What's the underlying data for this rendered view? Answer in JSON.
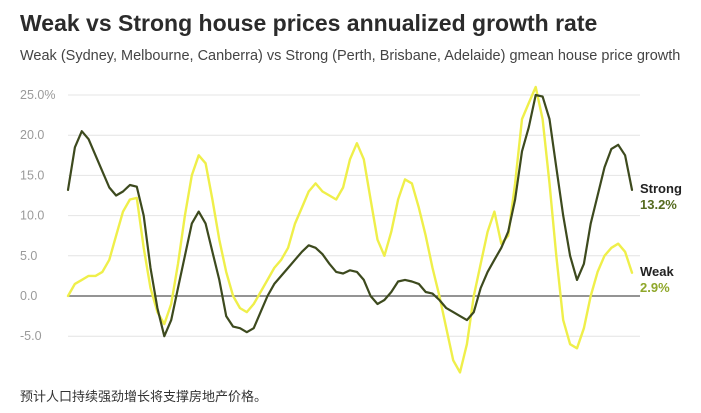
{
  "header": {
    "title": "Weak vs Strong house prices annualized growth rate",
    "subtitle": "Weak (Sydney, Melbourne, Canberra) vs Strong (Perth, Brisbane, Adelaide) gmean house price growth"
  },
  "caption": "预计人口持续强劲增长将支撑房地产价格。",
  "chart_data": {
    "type": "line",
    "title": "Weak vs Strong house prices annualized growth rate",
    "subtitle": "Weak (Sydney, Melbourne, Canberra) vs Strong (Perth, Brisbane, Adelaide) gmean house price growth",
    "ylim": [
      -8,
      26
    ],
    "yticks": [
      -5,
      0,
      5,
      10,
      15,
      20,
      25
    ],
    "ytick_labels": [
      "-5.0",
      "0.0",
      "5.0",
      "10.0",
      "15.0",
      "20.0",
      "25.0%"
    ],
    "grid": true,
    "legend": "end-labels-right",
    "series": [
      {
        "name": "Strong",
        "end_label": "13.2%",
        "color": "#3d4a1e",
        "values": [
          13.2,
          18.5,
          20.5,
          19.5,
          17.5,
          15.5,
          13.5,
          12.5,
          13.0,
          13.8,
          13.6,
          10.0,
          3.5,
          -1.5,
          -5.0,
          -3.0,
          1.0,
          5.0,
          9.0,
          10.5,
          9.0,
          5.5,
          2.0,
          -2.5,
          -3.8,
          -4.0,
          -4.5,
          -4.0,
          -2.0,
          0.0,
          1.5,
          2.5,
          3.5,
          4.5,
          5.5,
          6.3,
          6.0,
          5.2,
          4.0,
          3.0,
          2.8,
          3.2,
          3.0,
          2.0,
          0.0,
          -1.0,
          -0.5,
          0.5,
          1.8,
          2.0,
          1.8,
          1.5,
          0.5,
          0.3,
          -0.5,
          -1.5,
          -2.0,
          -2.5,
          -3.0,
          -2.0,
          1.0,
          3.0,
          4.5,
          6.0,
          8.0,
          12.0,
          18.0,
          21.0,
          25.0,
          24.8,
          22.0,
          16.0,
          10.0,
          5.0,
          2.0,
          4.0,
          9.0,
          12.5,
          16.0,
          18.3,
          18.8,
          17.5,
          13.2
        ]
      },
      {
        "name": "Weak",
        "end_label": "2.9%",
        "color": "#efef4a",
        "values": [
          0.0,
          1.5,
          2.0,
          2.5,
          2.5,
          3.0,
          4.5,
          7.5,
          10.5,
          12.0,
          12.2,
          6.0,
          1.0,
          -2.0,
          -3.5,
          -1.0,
          4.0,
          10.0,
          15.0,
          17.5,
          16.5,
          12.0,
          7.0,
          3.0,
          0.0,
          -1.5,
          -2.0,
          -1.0,
          0.5,
          2.0,
          3.5,
          4.5,
          6.0,
          9.0,
          11.0,
          13.0,
          14.0,
          13.0,
          12.5,
          12.0,
          13.5,
          17.0,
          19.0,
          17.0,
          12.0,
          7.0,
          5.0,
          8.0,
          12.0,
          14.5,
          14.0,
          11.0,
          7.5,
          3.5,
          0.0,
          -4.0,
          -8.0,
          -9.5,
          -6.0,
          0.0,
          4.0,
          8.0,
          10.5,
          6.5,
          7.5,
          14.0,
          22.0,
          24.0,
          26.0,
          22.0,
          14.0,
          5.0,
          -3.0,
          -6.0,
          -6.5,
          -4.0,
          0.0,
          3.0,
          5.0,
          6.0,
          6.5,
          5.5,
          2.9
        ]
      }
    ]
  }
}
